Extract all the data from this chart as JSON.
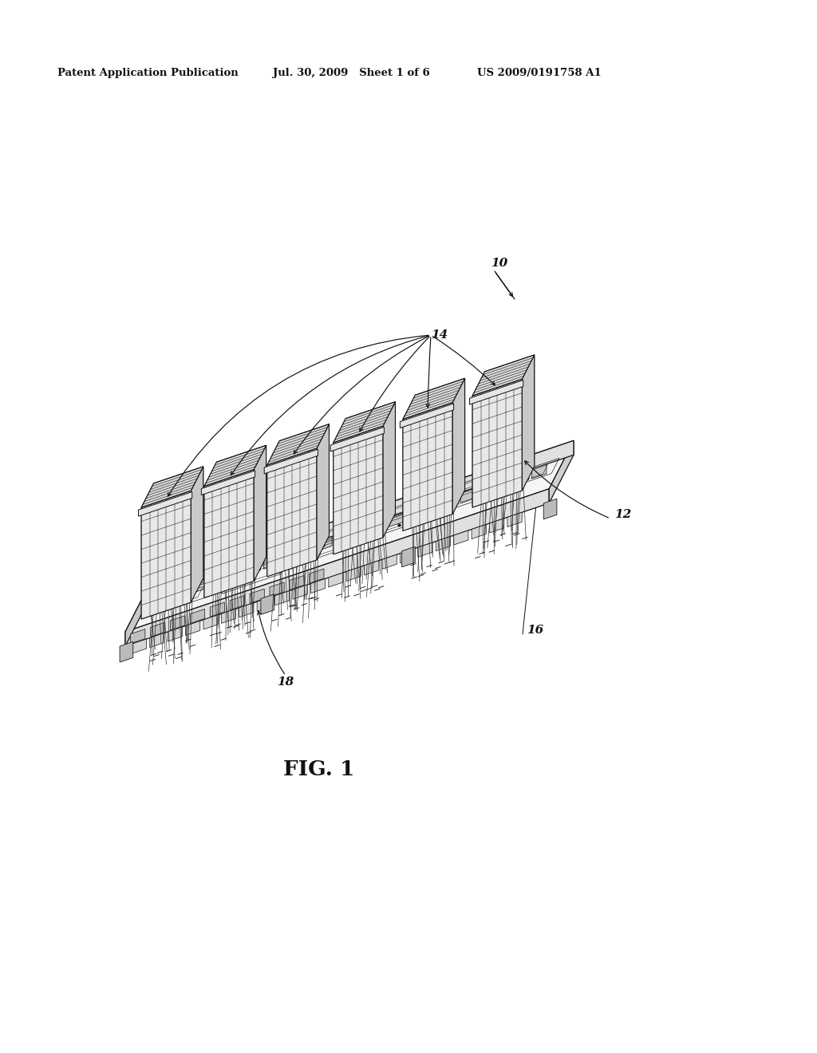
{
  "background_color": "#ffffff",
  "header_left": "Patent Application Publication",
  "header_mid": "Jul. 30, 2009   Sheet 1 of 6",
  "header_right": "US 2009/0191758 A1",
  "fig_label": "FIG. 1",
  "label_10": "10",
  "label_12": "12",
  "label_14": "14",
  "label_16": "16",
  "label_18": "18",
  "line_color": "#111111",
  "text_color": "#111111",
  "board_top_color": "#f5f5f5",
  "board_side_color": "#e0e0e0",
  "connector_top_color": "#d8d8d8",
  "connector_front_color": "#e8e8e8",
  "connector_side_color": "#c8c8c8"
}
